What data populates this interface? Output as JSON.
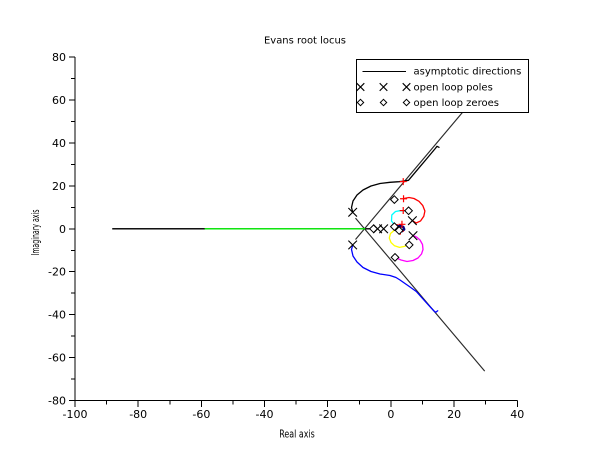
{
  "chart_data": {
    "type": "line",
    "subtype": "evans_root_locus",
    "title": "Evans root locus",
    "xlabel": "Real axis",
    "ylabel": "Imaginary axis",
    "xlim": [
      -100,
      40
    ],
    "ylim": [
      -80,
      80
    ],
    "xticks": [
      -100,
      -80,
      -60,
      -40,
      -20,
      0,
      20,
      40
    ],
    "yticks": [
      -80,
      -60,
      -40,
      -20,
      0,
      20,
      40,
      60,
      80
    ],
    "minor_tick_step": 10,
    "grid": false,
    "asymptotes": {
      "color": "#2a2a2a",
      "centroid": [
        -8.3,
        0
      ],
      "segments": [
        {
          "points": [
            [
              -8.3,
              0
            ],
            [
              -88.2,
              0
            ]
          ]
        },
        {
          "points": [
            [
              -11.2,
              -5.0
            ],
            [
              33.4,
              73.0
            ]
          ]
        },
        {
          "points": [
            [
              -11.2,
              5.0
            ],
            [
              29.7,
              -66.3
            ]
          ]
        }
      ]
    },
    "real_axis_segments": [
      {
        "color": "#000000",
        "points": [
          [
            -88.2,
            0
          ],
          [
            -58.8,
            0
          ]
        ]
      },
      {
        "color": "#000000",
        "points": [
          [
            -8.3,
            0
          ],
          [
            -4.2,
            0
          ]
        ]
      }
    ],
    "branches": [
      {
        "name": "green",
        "color": "#00ee00",
        "width": 1.4,
        "points": [
          [
            -58.8,
            0
          ],
          [
            -8.3,
            0
          ]
        ]
      },
      {
        "name": "black",
        "color": "#000000",
        "width": 1.3,
        "points": [
          [
            -12.09,
            7.73
          ],
          [
            -12.47,
            9.92
          ],
          [
            -12.0,
            12.95
          ],
          [
            -10.73,
            15.74
          ],
          [
            -8.83,
            18.07
          ],
          [
            -6.3,
            19.93
          ],
          [
            -3.45,
            21.1
          ],
          [
            -0.28,
            21.66
          ],
          [
            2.56,
            21.94
          ],
          [
            3.99,
            22.17
          ],
          [
            5.57,
            22.59
          ],
          [
            7.47,
            25.89
          ],
          [
            9.37,
            29.2
          ],
          [
            11.27,
            32.51
          ],
          [
            12.85,
            35.3
          ],
          [
            14.05,
            37.4
          ],
          [
            14.59,
            38.42
          ],
          [
            15.22,
            37.96
          ]
        ]
      },
      {
        "name": "blue",
        "color": "#0000ff",
        "width": 1.3,
        "points": [
          [
            -12.09,
            -7.68
          ],
          [
            -12.47,
            -9.64
          ],
          [
            -12.0,
            -12.67
          ],
          [
            -10.73,
            -15.46
          ],
          [
            -8.83,
            -18.02
          ],
          [
            -6.3,
            -19.88
          ],
          [
            -3.45,
            -21.05
          ],
          [
            -0.28,
            -21.75
          ],
          [
            1.61,
            -22.68
          ],
          [
            2.88,
            -23.84
          ],
          [
            4.46,
            -25.47
          ],
          [
            5.89,
            -26.9
          ],
          [
            8.04,
            -29.2
          ],
          [
            10.16,
            -32.69
          ],
          [
            11.87,
            -35.49
          ],
          [
            13.64,
            -38.28
          ],
          [
            14.2,
            -38.9
          ],
          [
            14.8,
            -38.2
          ]
        ]
      },
      {
        "name": "red",
        "color": "#ff0000",
        "width": 1.3,
        "points": [
          [
            4.08,
            14.11
          ],
          [
            5.73,
            14.58
          ],
          [
            7.31,
            14.11
          ],
          [
            8.9,
            12.8
          ],
          [
            10.1,
            10.8
          ],
          [
            10.75,
            8.3
          ],
          [
            10.4,
            5.8
          ],
          [
            9.4,
            3.7
          ],
          [
            8.0,
            2.7
          ],
          [
            6.84,
            3.77
          ]
        ]
      },
      {
        "name": "magenta",
        "color": "#ff00ff",
        "width": 1.3,
        "points": [
          [
            7.0,
            -3.12
          ],
          [
            8.1,
            -3.82
          ],
          [
            9.21,
            -5.22
          ],
          [
            10.0,
            -7.31
          ],
          [
            10.16,
            -9.64
          ],
          [
            9.69,
            -11.74
          ],
          [
            8.58,
            -13.6
          ],
          [
            7.0,
            -14.76
          ],
          [
            5.1,
            -15.23
          ],
          [
            3.2,
            -14.53
          ],
          [
            1.77,
            -13.6
          ],
          [
            1.36,
            -13.27
          ]
        ]
      },
      {
        "name": "cyan",
        "color": "#00ffff",
        "width": 1.3,
        "points": [
          [
            1.77,
            0.6
          ],
          [
            0.19,
            3.63
          ],
          [
            0.28,
            6.42
          ],
          [
            1.46,
            8.06
          ],
          [
            2.88,
            8.43
          ],
          [
            4.4,
            8.33
          ]
        ]
      },
      {
        "name": "yellow",
        "color": "#ffff00",
        "width": 1.3,
        "points": [
          [
            2.56,
            -0.33
          ],
          [
            0.98,
            -0.79
          ],
          [
            -0.13,
            -2.19
          ],
          [
            -0.51,
            -4.28
          ],
          [
            0.03,
            -6.38
          ],
          [
            1.14,
            -7.92
          ],
          [
            2.72,
            -8.66
          ],
          [
            4.3,
            -8.2
          ],
          [
            5.47,
            -7.45
          ]
        ]
      },
      {
        "name": "navy",
        "color": "#000080",
        "width": 2.5,
        "points": [
          [
            3.1,
            1.6
          ],
          [
            2.1,
            1.1
          ],
          [
            1.9,
            0.0
          ],
          [
            2.4,
            -0.9
          ],
          [
            3.5,
            -1.1
          ],
          [
            4.2,
            -0.3
          ],
          [
            3.9,
            0.9
          ],
          [
            3.0,
            1.3
          ]
        ]
      }
    ],
    "open_loop_poles": [
      [
        -12.1,
        7.7
      ],
      [
        -12.1,
        -7.5
      ],
      [
        -4.2,
        0
      ],
      [
        -2.3,
        0
      ],
      [
        6.8,
        3.8
      ],
      [
        7.0,
        -3.2
      ]
    ],
    "open_loop_zeroes": [
      [
        1.1,
        13.6
      ],
      [
        5.6,
        8.4
      ],
      [
        -5.5,
        0
      ],
      [
        1.1,
        1.0
      ],
      [
        2.6,
        -0.8
      ],
      [
        5.8,
        -7.5
      ],
      [
        1.3,
        -13.3
      ]
    ],
    "closed_loop_gain_marks": {
      "color": "#ff0000",
      "points": [
        [
          3.9,
          22.0
        ],
        [
          4.0,
          14.0
        ],
        [
          3.9,
          8.5
        ],
        [
          3.5,
          2.1
        ],
        [
          2.0,
          0.6
        ],
        [
          3.0,
          -1.1
        ]
      ]
    },
    "legend": {
      "position": "top-right",
      "items": [
        {
          "label": "asymptotic directions",
          "marker": "line"
        },
        {
          "label": "open loop poles",
          "marker": "x"
        },
        {
          "label": "open loop zeroes",
          "marker": "diamond"
        }
      ]
    }
  }
}
